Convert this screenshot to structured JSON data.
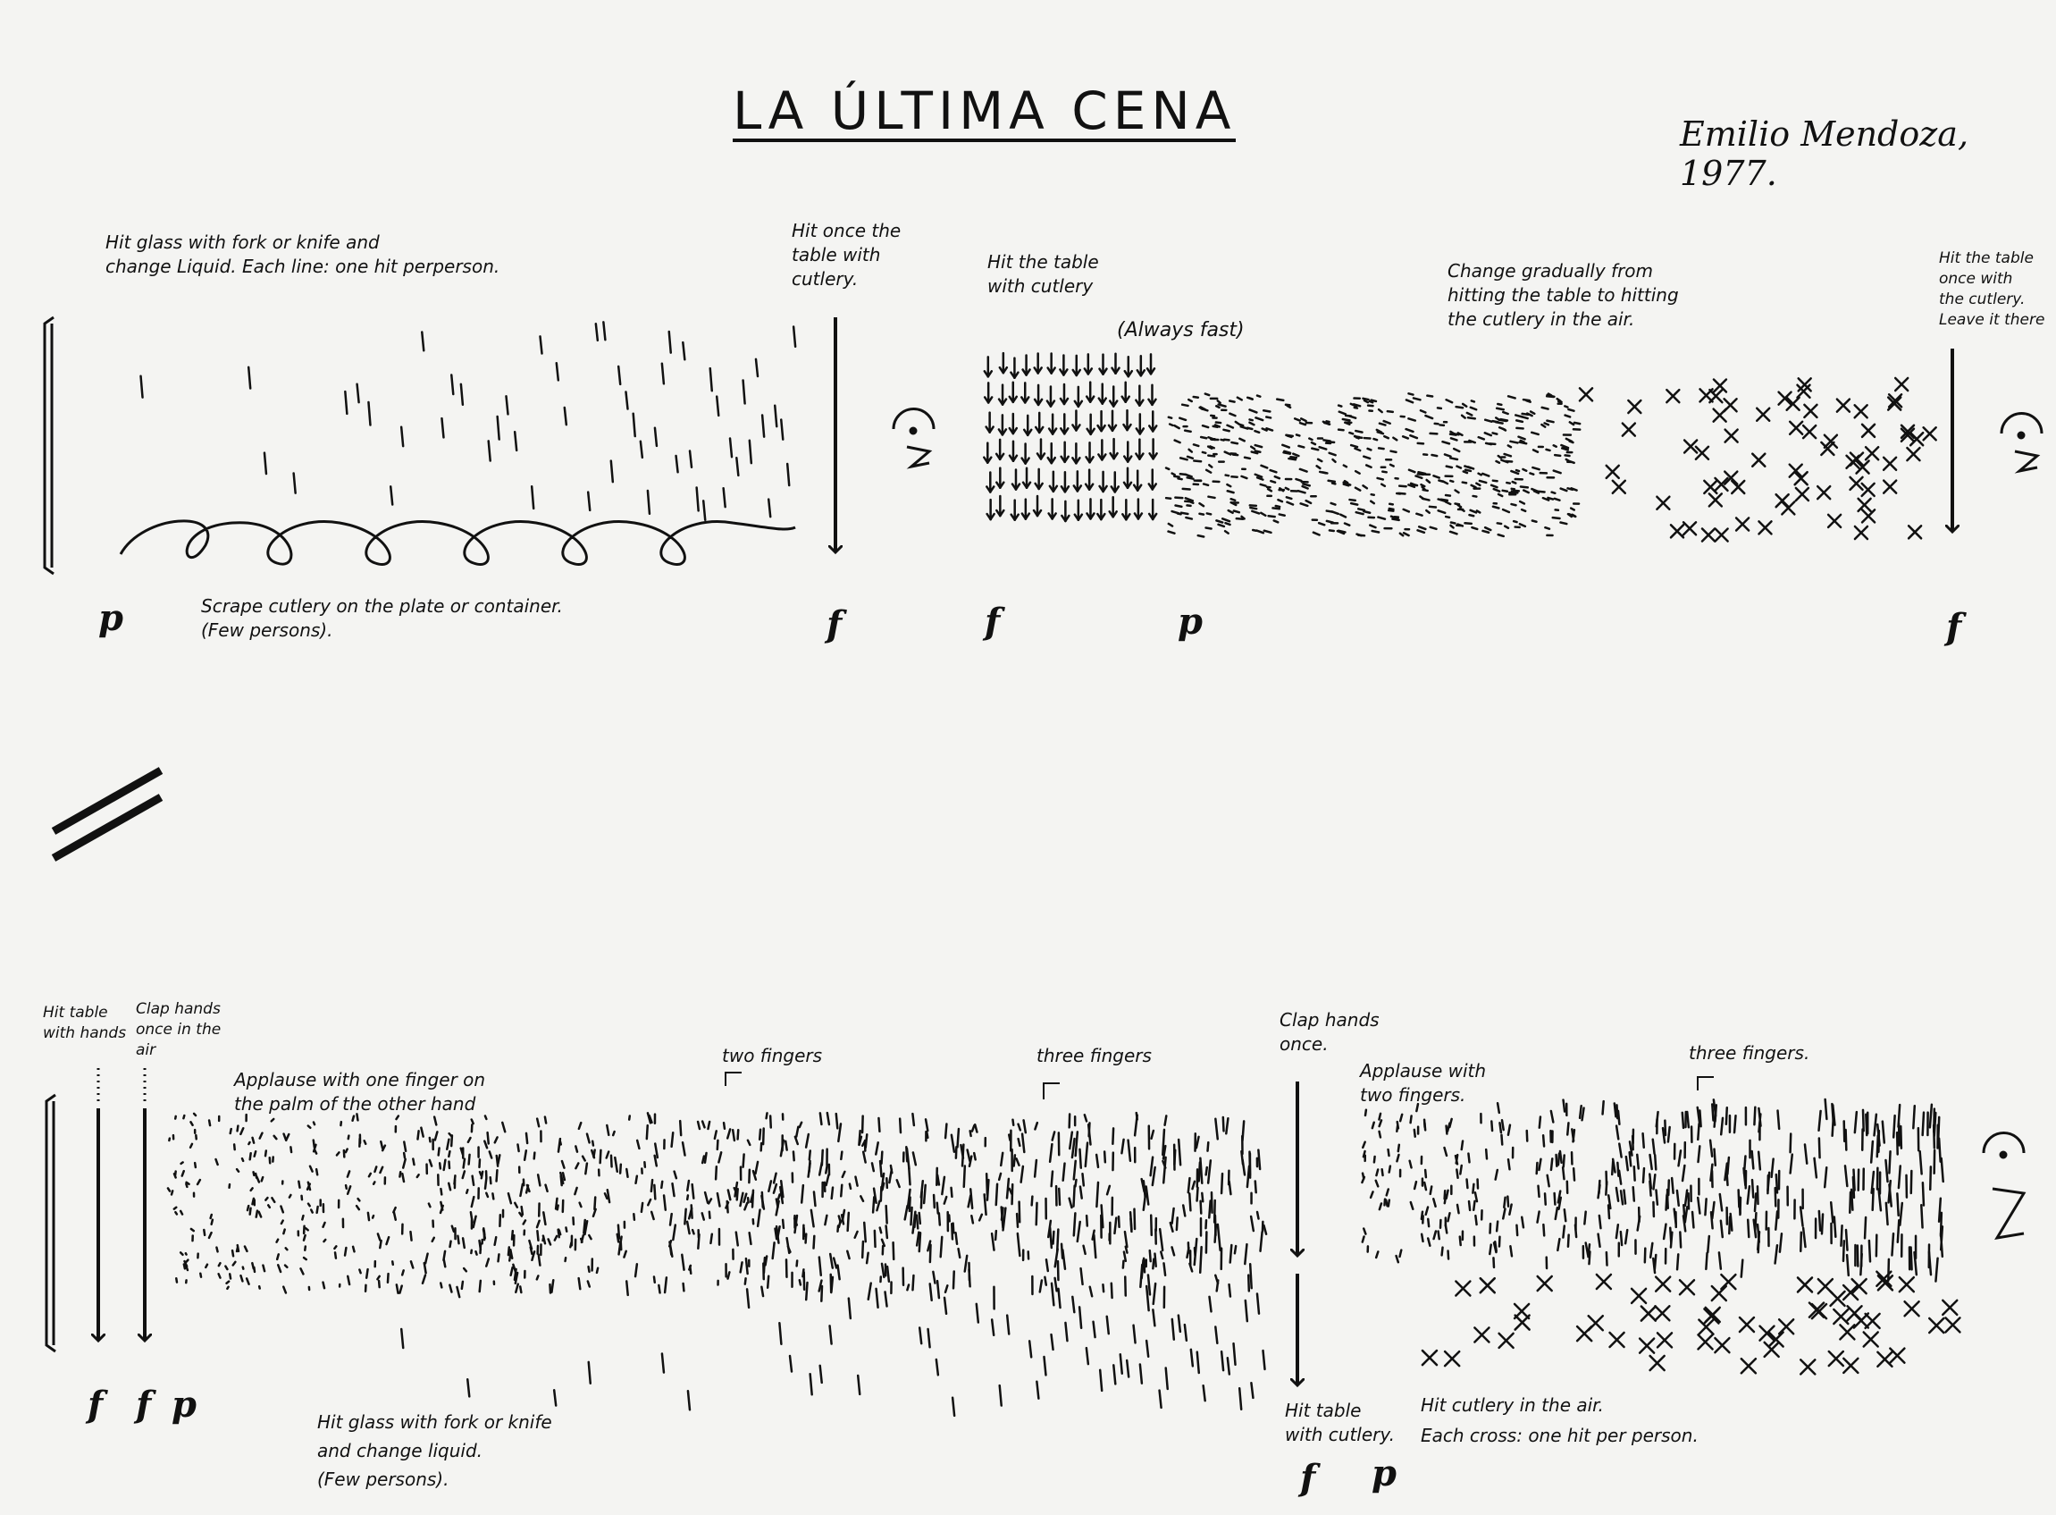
{
  "title": "LA ÚLTIMA CENA",
  "composer": "Emilio Mendoza, 1977.",
  "system1": {
    "glass_instruction": "Hit glass with fork or knife and\nchange Liquid. Each line: one hit perperson.",
    "scrape_instruction": "Scrape cutlery on the plate or container.\n(Few persons).",
    "hit_once_instruction": "Hit once the\ntable with\ncutlery.",
    "hit_table_instruction": "Hit the table\nwith cutlery",
    "always_fast": "(Always fast)",
    "change_gradually": "Change gradually from\nhitting the table to hitting\nthe cutlery in the air.",
    "hit_table_once_end": "Hit the table\nonce with\nthe cutlery.\nLeave it there",
    "dynamics": [
      "p",
      "f",
      "f",
      "p",
      "f"
    ]
  },
  "system2": {
    "hit_table_hands": "Hit table\nwith hands",
    "clap_once_air": "Clap hands\nonce in the\nair",
    "applause_one_finger": "Applause with one finger on\nthe palm of the other hand",
    "two_fingers": "two fingers",
    "three_fingers_1": "three fingers",
    "clap_once": "Clap hands\nonce.",
    "applause_two_fingers": "Applause with\ntwo fingers.",
    "three_fingers_2": "three fingers.",
    "glass_instruction_2": "Hit glass with fork or knife\nand change liquid.\n(Few persons).",
    "hit_table_cutlery": "Hit table\nwith cutlery.",
    "hit_cutlery_air": "Hit cutlery in the air.\nEach cross: one hit per person.",
    "dynamics": [
      "f",
      "f",
      "p",
      "f",
      "p"
    ]
  }
}
